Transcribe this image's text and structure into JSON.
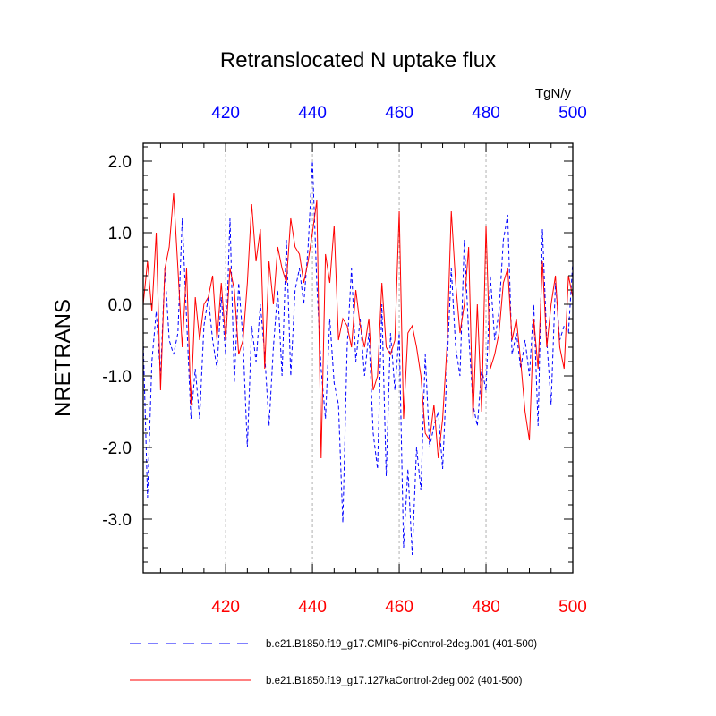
{
  "chart_data": {
    "type": "line",
    "title": "Retranslocated N uptake flux",
    "units": "TgN/y",
    "ylabel": "NRETRANS",
    "xlabel": "",
    "xlim": [
      401,
      500
    ],
    "ylim": [
      -3.75,
      2.25
    ],
    "x_ticks": [
      420,
      440,
      460,
      480,
      500
    ],
    "x_tick_labels": [
      "420",
      "440",
      "460",
      "480",
      "500"
    ],
    "y_ticks": [
      2.0,
      1.0,
      0.0,
      -1.0,
      -2.0,
      -3.0
    ],
    "y_tick_labels": [
      "2.0",
      "1.0",
      "0.0",
      "-1.0",
      "-2.0",
      "-3.0"
    ],
    "grid": "vertical dashed at major x ticks",
    "legend_position": "below plot",
    "x_start": 401,
    "series": [
      {
        "name": "b.e21.B1850.f19_g17.CMIP6-piControl-2deg.001 (401-500)",
        "color": "#0000ff",
        "style": "dashed",
        "values": [
          -0.5,
          -2.7,
          -0.8,
          -0.1,
          -1.0,
          0.5,
          -0.5,
          -0.7,
          -0.4,
          1.2,
          -0.2,
          -1.6,
          -0.9,
          -1.6,
          -0.3,
          0.1,
          -0.5,
          -0.9,
          0.1,
          -0.7,
          1.2,
          -1.1,
          0.3,
          -0.5,
          -2.0,
          -0.3,
          -0.8,
          0.0,
          -0.7,
          -1.7,
          -0.6,
          0.2,
          -1.0,
          0.9,
          -1.0,
          0.2,
          0.5,
          0.0,
          0.8,
          2.0,
          0.3,
          -0.9,
          -1.6,
          -0.2,
          -1.1,
          -1.4,
          -3.05,
          -0.6,
          0.5,
          -0.8,
          -0.2,
          -1.0,
          -0.4,
          -1.8,
          -2.3,
          0.0,
          -2.4,
          -0.4,
          -1.2,
          -0.4,
          -3.4,
          -2.3,
          -3.5,
          -2.0,
          -2.6,
          -0.7,
          -2.0,
          -1.7,
          -1.5,
          -2.3,
          -0.9,
          0.5,
          -0.6,
          -1.0,
          0.9,
          -0.4,
          -1.4,
          -1.7,
          -0.9,
          -1.2,
          0.4,
          -0.5,
          -0.1,
          0.9,
          1.25,
          -0.7,
          -0.4,
          -0.9,
          -0.5,
          -1.0,
          0.0,
          -1.7,
          1.05,
          -0.5,
          -1.4,
          0.3,
          -0.5,
          -0.3,
          -0.4,
          0.6
        ]
      },
      {
        "name": "b.e21.B1850.f19_g17.127kaControl-2deg.002 (401-500)",
        "color": "#ff0000",
        "style": "solid",
        "values": [
          0.0,
          0.6,
          -0.1,
          1.0,
          -1.2,
          0.5,
          0.8,
          1.55,
          0.5,
          -0.6,
          0.5,
          -1.4,
          0.1,
          -0.5,
          0.0,
          0.1,
          0.4,
          -0.5,
          0.3,
          -0.5,
          0.5,
          0.2,
          -0.7,
          -0.5,
          0.3,
          1.4,
          0.6,
          1.05,
          -0.9,
          0.6,
          0.0,
          0.8,
          0.5,
          0.3,
          1.2,
          0.8,
          0.7,
          0.3,
          0.6,
          1.0,
          1.45,
          -2.15,
          0.7,
          0.3,
          1.1,
          -0.5,
          -0.2,
          -0.3,
          -0.6,
          0.2,
          -0.3,
          -0.6,
          -0.2,
          -1.2,
          -1.0,
          0.3,
          -0.6,
          -0.7,
          -0.5,
          1.3,
          -1.6,
          -0.4,
          -0.3,
          -0.6,
          -1.0,
          -1.8,
          -1.9,
          -1.4,
          -2.15,
          -1.6,
          -0.6,
          1.3,
          0.3,
          -0.4,
          0.0,
          0.8,
          -1.6,
          0.0,
          -1.5,
          1.1,
          -0.9,
          -0.7,
          -0.4,
          0.3,
          0.5,
          -0.5,
          -0.2,
          -0.8,
          -1.5,
          -1.9,
          -0.2,
          -0.9,
          0.6,
          -0.6,
          0.0,
          0.4,
          -0.6,
          -0.9,
          0.4,
          0.1
        ]
      }
    ]
  }
}
